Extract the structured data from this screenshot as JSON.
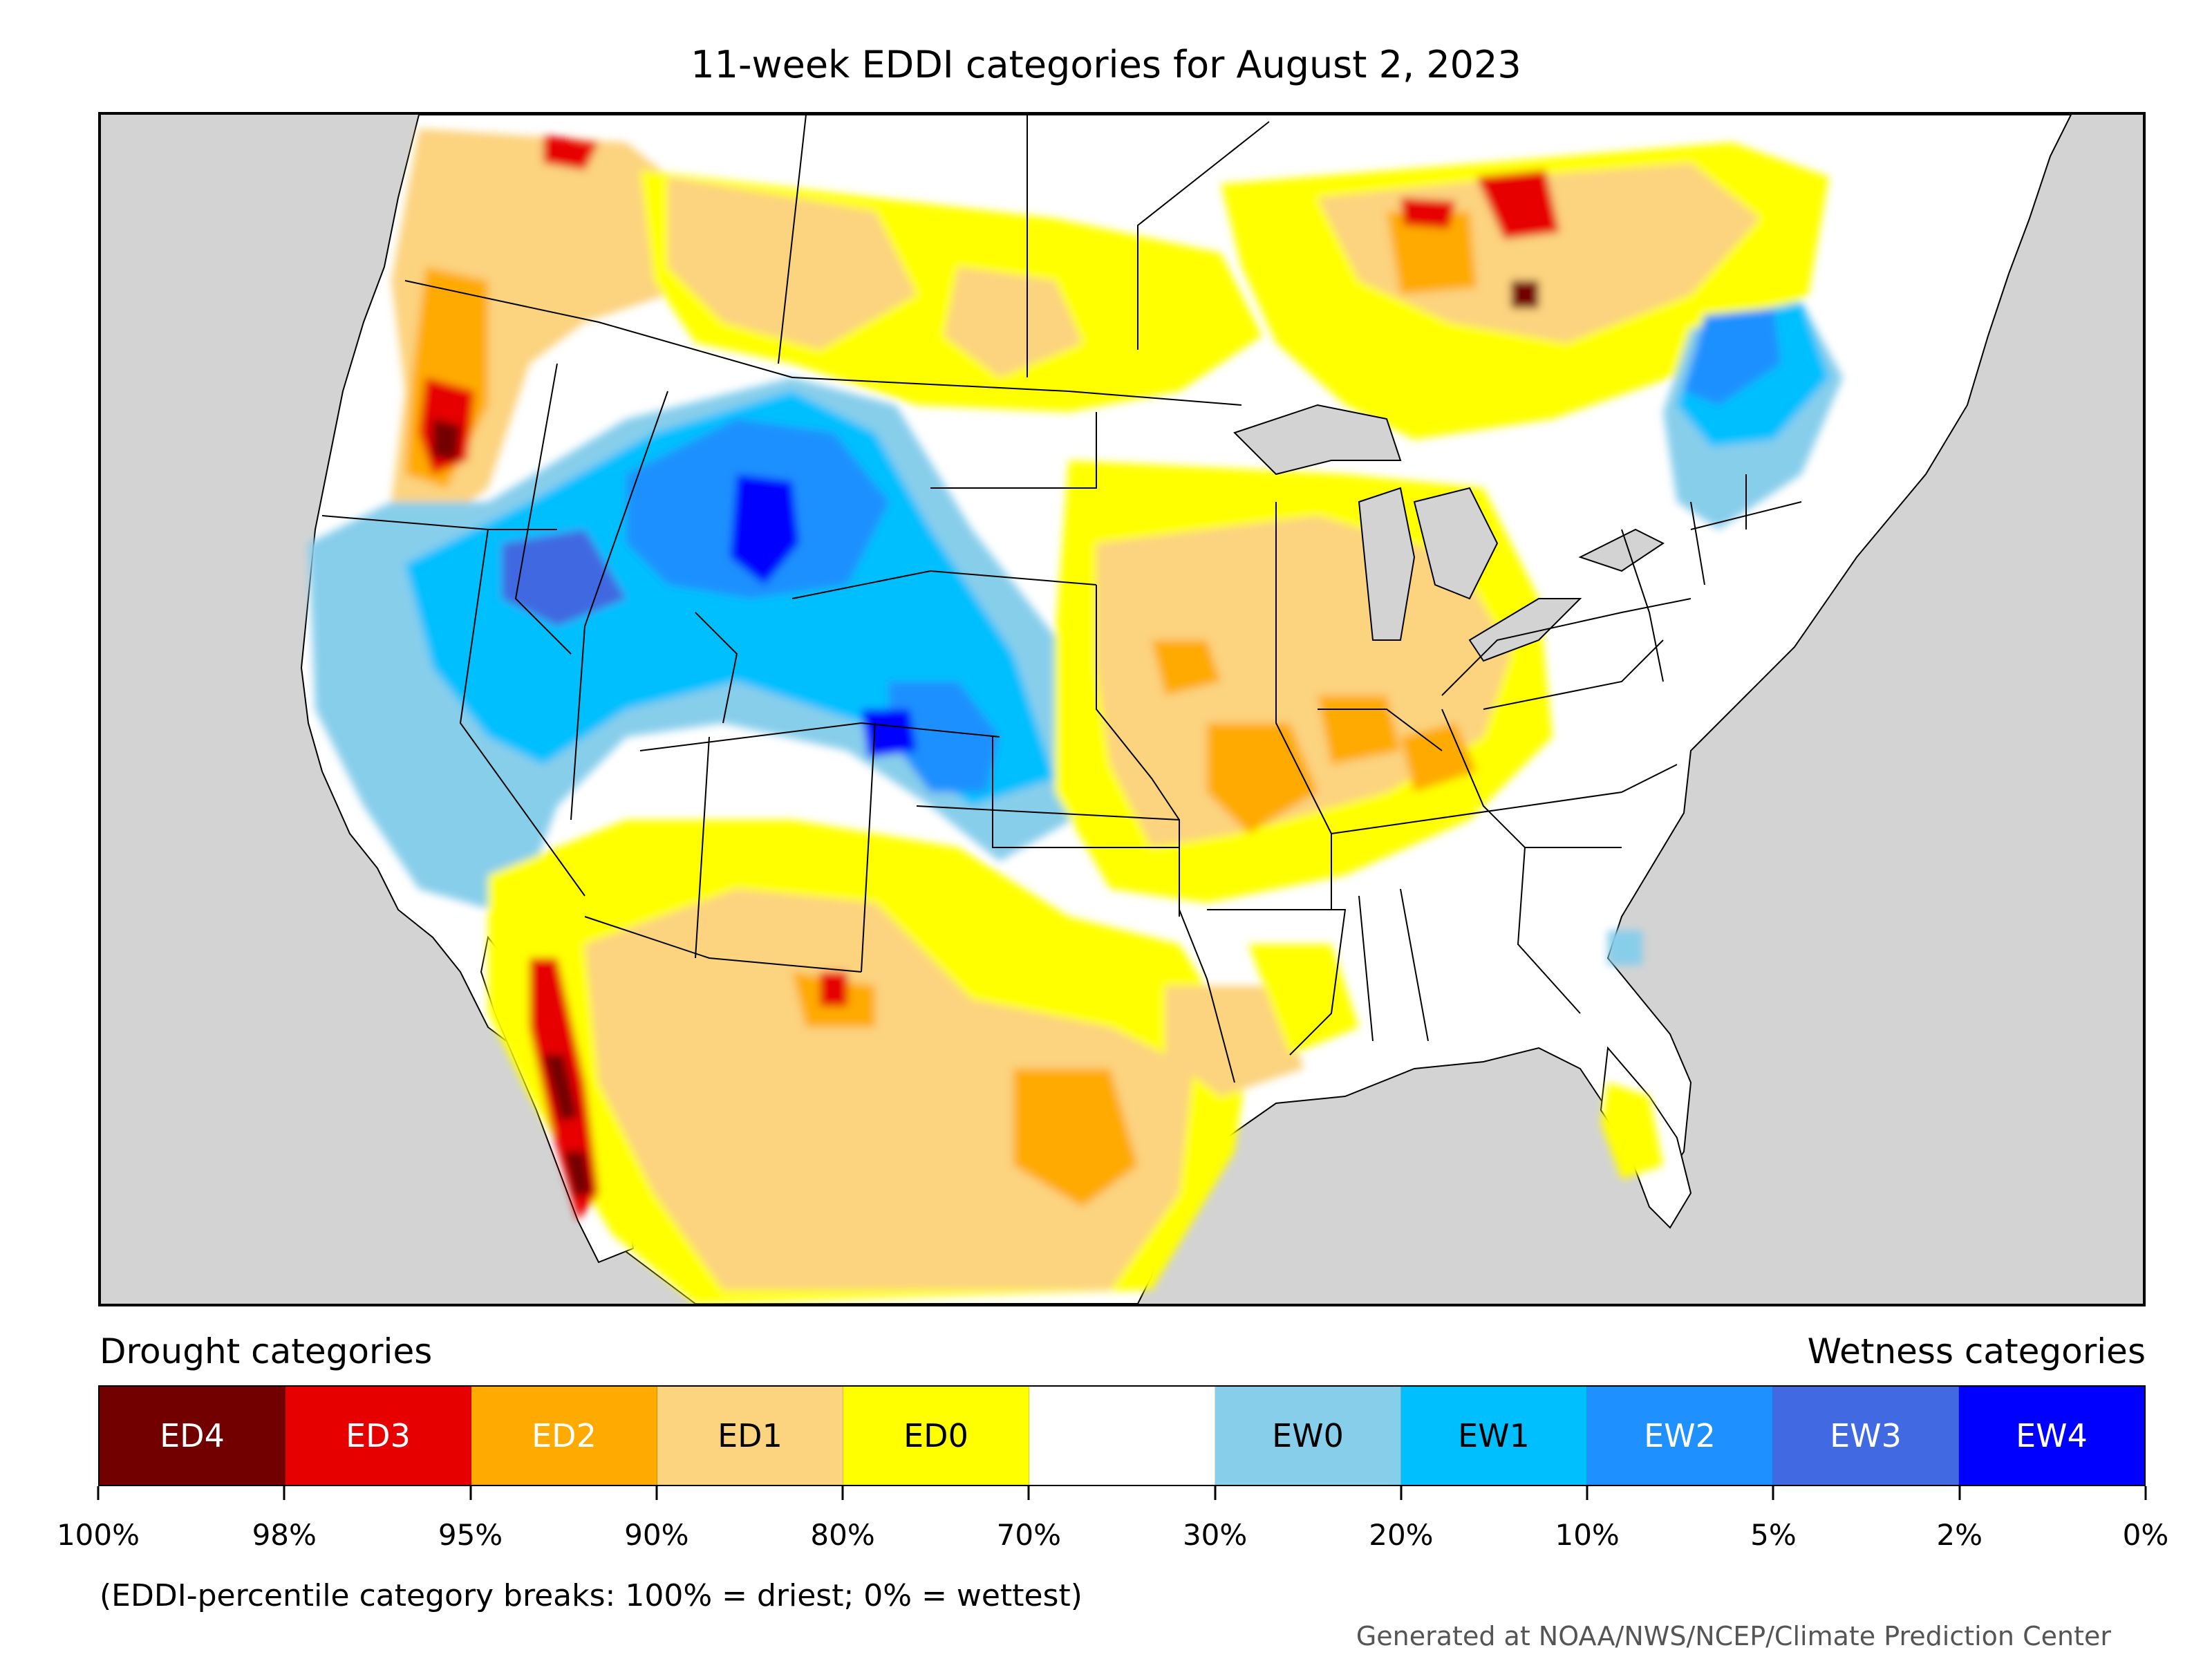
{
  "title": "11-week EDDI categories for August 2, 2023",
  "colors": {
    "ocean": "#d3d3d3",
    "land": "#ffffff",
    "ED4": "#730000",
    "ED3": "#e60000",
    "ED2": "#ffaa00",
    "ED1": "#fcd37f",
    "ED0": "#ffff00",
    "neutral": "#ffffff",
    "EW0": "#87ceeb",
    "EW1": "#00bfff",
    "EW2": "#1e90ff",
    "EW3": "#4169e1",
    "EW4": "#0000ff"
  },
  "legend": {
    "drought_heading": "Drought categories",
    "wetness_heading": "Wetness categories",
    "categories": [
      {
        "label": "ED4",
        "color": "#730000",
        "text_color": "#ffffff"
      },
      {
        "label": "ED3",
        "color": "#e60000",
        "text_color": "#ffffff"
      },
      {
        "label": "ED2",
        "color": "#ffaa00",
        "text_color": "#ffffff"
      },
      {
        "label": "ED1",
        "color": "#fcd37f",
        "text_color": "#000000"
      },
      {
        "label": "ED0",
        "color": "#ffff00",
        "text_color": "#000000"
      },
      {
        "label": "",
        "color": "#ffffff",
        "text_color": "#000000"
      },
      {
        "label": "EW0",
        "color": "#87ceeb",
        "text_color": "#000000"
      },
      {
        "label": "EW1",
        "color": "#00bfff",
        "text_color": "#000000"
      },
      {
        "label": "EW2",
        "color": "#1e90ff",
        "text_color": "#ffffff"
      },
      {
        "label": "EW3",
        "color": "#4169e1",
        "text_color": "#ffffff"
      },
      {
        "label": "EW4",
        "color": "#0000ff",
        "text_color": "#ffffff"
      }
    ],
    "ticks": [
      "100%",
      "98%",
      "95%",
      "90%",
      "80%",
      "70%",
      "30%",
      "20%",
      "10%",
      "5%",
      "2%",
      "0%"
    ],
    "note": "(EDDI-percentile category breaks: 100% = driest; 0% = wettest)"
  },
  "credit": "Generated at NOAA/NWS/NCEP/Climate Prediction Center"
}
